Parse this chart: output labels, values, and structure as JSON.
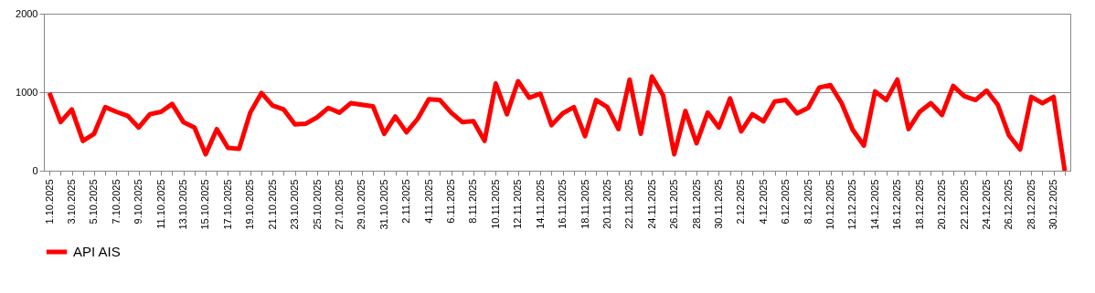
{
  "chart_data": {
    "type": "line",
    "categories": [
      "1.10.2025",
      null,
      "3.10.2025",
      null,
      "5.10.2025",
      null,
      "7.10.2025",
      null,
      "9.10.2025",
      null,
      "11.10.2025",
      null,
      "13.10.2025",
      null,
      "15.10.2025",
      null,
      "17.10.2025",
      null,
      "19.10.2025",
      null,
      "21.10.2025",
      null,
      "23.10.2025",
      null,
      "25.10.2025",
      null,
      "27.10.2025",
      null,
      "29.10.2025",
      null,
      "31.10.2025",
      null,
      "2.11.2025",
      null,
      "4.11.2025",
      null,
      "6.11.2025",
      null,
      "8.11.2025",
      null,
      "10.11.2025",
      null,
      "12.11.2025",
      null,
      "14.11.2025",
      null,
      "16.11.2025",
      null,
      "18.11.2025",
      null,
      "20.11.2025",
      null,
      "22.11.2025",
      null,
      "24.11.2025",
      null,
      "26.11.2025",
      null,
      "28.11.2025",
      null,
      "30.11.2025",
      null,
      "2.12.2025",
      null,
      "4.12.2025",
      null,
      "6.12.2025",
      null,
      "8.12.2025",
      null,
      "10.12.2025",
      null,
      "12.12.2025",
      null,
      "14.12.2025",
      null,
      "16.12.2025",
      null,
      "18.12.2025",
      null,
      "20.12.2025",
      null,
      "22.12.2025",
      null,
      "24.12.2025",
      null,
      "26.12.2025",
      null,
      "28.12.2025",
      null,
      "30.12.2025",
      null
    ],
    "series": [
      {
        "name": "API AIS",
        "color": "#ff0000",
        "values": [
          990,
          620,
          780,
          380,
          470,
          810,
          750,
          700,
          550,
          720,
          750,
          850,
          620,
          550,
          210,
          530,
          290,
          280,
          740,
          990,
          830,
          780,
          590,
          600,
          680,
          800,
          740,
          860,
          840,
          820,
          470,
          690,
          490,
          660,
          910,
          900,
          740,
          620,
          630,
          380,
          1110,
          720,
          1140,
          930,
          980,
          580,
          730,
          810,
          440,
          900,
          810,
          530,
          1160,
          470,
          1200,
          960,
          210,
          760,
          350,
          740,
          550,
          920,
          500,
          720,
          630,
          880,
          900,
          730,
          800,
          1060,
          1090,
          860,
          520,
          320,
          1010,
          900,
          1160,
          530,
          750,
          860,
          710,
          1080,
          950,
          900,
          1020,
          840,
          450,
          270,
          940,
          860,
          940,
          0
        ]
      }
    ],
    "ylim": [
      0,
      2000
    ],
    "yticks": [
      0,
      1000,
      2000
    ],
    "grid": true,
    "legend": "bottom"
  }
}
